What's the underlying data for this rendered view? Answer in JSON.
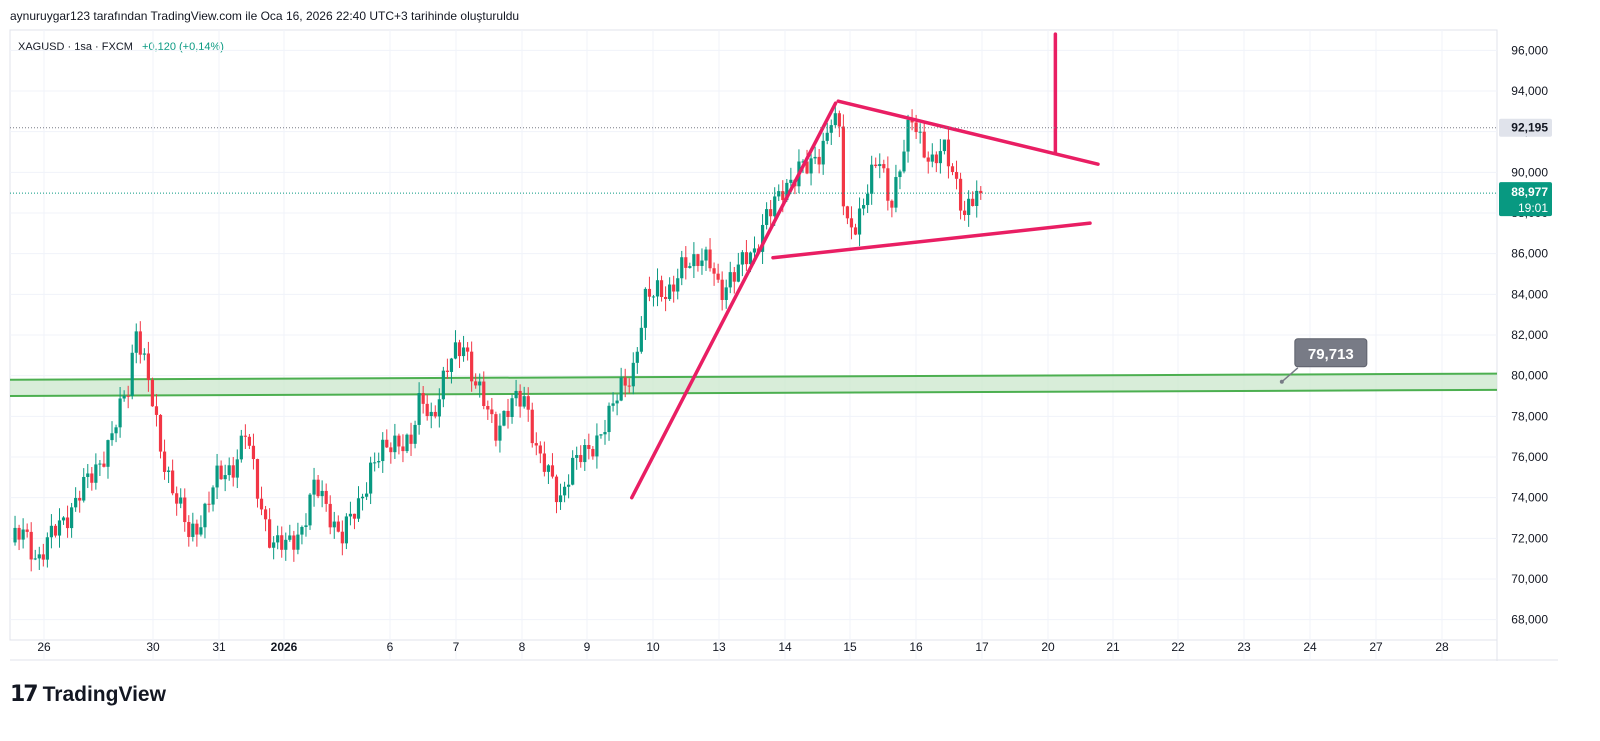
{
  "header": {
    "attribution": "aynuruygar123 tarafından TradingView.com ile Oca 16, 2026 22:40 UTC+3 tarihinde oluşturuldu"
  },
  "symbol": {
    "name": "XAGUSD",
    "interval": "1sa",
    "source": "FXCM",
    "separator": " · ",
    "change": "+0,120 (+0,14%)"
  },
  "price_scale": {
    "ticks": [
      "96,000",
      "94,000",
      "92,000",
      "90,000",
      "88,000",
      "86,000",
      "84,000",
      "82,000",
      "80,000",
      "78,000",
      "76,000",
      "74,000",
      "72,000",
      "70,000",
      "68,000"
    ],
    "marker_line": {
      "label": "92,195",
      "color": "#131722"
    },
    "last_price": {
      "label": "88,977",
      "countdown": "19:01",
      "color": "#089981"
    }
  },
  "time_axis": {
    "labels": [
      {
        "text": "26",
        "bold": false
      },
      {
        "text": "30",
        "bold": false
      },
      {
        "text": "31",
        "bold": false
      },
      {
        "text": "2026",
        "bold": true
      },
      {
        "text": "6",
        "bold": false
      },
      {
        "text": "7",
        "bold": false
      },
      {
        "text": "8",
        "bold": false
      },
      {
        "text": "9",
        "bold": false
      },
      {
        "text": "10",
        "bold": false
      },
      {
        "text": "13",
        "bold": false
      },
      {
        "text": "14",
        "bold": false
      },
      {
        "text": "15",
        "bold": false
      },
      {
        "text": "16",
        "bold": false
      },
      {
        "text": "17",
        "bold": false
      },
      {
        "text": "20",
        "bold": false
      },
      {
        "text": "21",
        "bold": false
      },
      {
        "text": "22",
        "bold": false
      },
      {
        "text": "23",
        "bold": false
      },
      {
        "text": "24",
        "bold": false
      },
      {
        "text": "27",
        "bold": false
      },
      {
        "text": "28",
        "bold": false
      }
    ]
  },
  "chart_data": {
    "type": "candlestick",
    "symbol": "XAGUSD",
    "ylim": [
      67000,
      97000
    ],
    "colors": {
      "up": "#089981",
      "down": "#f23645",
      "trendline": "#e91e63",
      "zone": "#4caf50",
      "zone_fill": "#c8e6c9"
    },
    "wave": [
      {
        "x": 0,
        "v": 71.8
      },
      {
        "x": 0.5,
        "v": 72.2
      },
      {
        "x": 1,
        "v": 71.0
      },
      {
        "x": 2,
        "v": 73.0
      },
      {
        "x": 3,
        "v": 75.0
      },
      {
        "x": 3.8,
        "v": 77.0
      },
      {
        "x": 4.4,
        "v": 79.5
      },
      {
        "x": 4.7,
        "v": 82.5
      },
      {
        "x": 5.1,
        "v": 80.0
      },
      {
        "x": 5.6,
        "v": 76.5
      },
      {
        "x": 6.2,
        "v": 74.0
      },
      {
        "x": 6.7,
        "v": 72.0
      },
      {
        "x": 7.2,
        "v": 73.2
      },
      {
        "x": 7.7,
        "v": 74.8
      },
      {
        "x": 8.3,
        "v": 75.5
      },
      {
        "x": 8.8,
        "v": 77.2
      },
      {
        "x": 9.3,
        "v": 74.0
      },
      {
        "x": 9.8,
        "v": 71.8
      },
      {
        "x": 10.3,
        "v": 71.5
      },
      {
        "x": 10.9,
        "v": 72.5
      },
      {
        "x": 11.4,
        "v": 74.5
      },
      {
        "x": 11.9,
        "v": 73.5
      },
      {
        "x": 12.4,
        "v": 72.0
      },
      {
        "x": 13,
        "v": 73.5
      },
      {
        "x": 13.5,
        "v": 75.5
      },
      {
        "x": 14,
        "v": 76.2
      },
      {
        "x": 14.5,
        "v": 77.0
      },
      {
        "x": 15,
        "v": 76.5
      },
      {
        "x": 15.4,
        "v": 79.0
      },
      {
        "x": 15.8,
        "v": 78.0
      },
      {
        "x": 16.2,
        "v": 79.5
      },
      {
        "x": 16.6,
        "v": 81.0
      },
      {
        "x": 17.0,
        "v": 81.8
      },
      {
        "x": 17.4,
        "v": 79.5
      },
      {
        "x": 17.8,
        "v": 78.5
      },
      {
        "x": 18.2,
        "v": 77.5
      },
      {
        "x": 18.8,
        "v": 78.5
      },
      {
        "x": 19.3,
        "v": 79.0
      },
      {
        "x": 19.8,
        "v": 76.0
      },
      {
        "x": 20.2,
        "v": 75.0
      },
      {
        "x": 20.6,
        "v": 74.0
      },
      {
        "x": 21.0,
        "v": 75.5
      },
      {
        "x": 21.5,
        "v": 76.0
      },
      {
        "x": 22,
        "v": 77.0
      },
      {
        "x": 22.5,
        "v": 78.0
      },
      {
        "x": 22.9,
        "v": 79.5
      },
      {
        "x": 23.4,
        "v": 80.5
      },
      {
        "x": 23.8,
        "v": 83.5
      },
      {
        "x": 24.3,
        "v": 84.5
      },
      {
        "x": 24.8,
        "v": 84.0
      },
      {
        "x": 25.3,
        "v": 85.5
      },
      {
        "x": 25.8,
        "v": 86.0
      },
      {
        "x": 26.2,
        "v": 85.5
      },
      {
        "x": 26.6,
        "v": 84.0
      },
      {
        "x": 27.0,
        "v": 85.0
      },
      {
        "x": 27.5,
        "v": 85.5
      },
      {
        "x": 27.9,
        "v": 86.0
      },
      {
        "x": 28.3,
        "v": 88.0
      },
      {
        "x": 28.8,
        "v": 88.5
      },
      {
        "x": 29.2,
        "v": 89.5
      },
      {
        "x": 29.6,
        "v": 90.5
      },
      {
        "x": 30.0,
        "v": 90.0
      },
      {
        "x": 30.4,
        "v": 91.0
      },
      {
        "x": 30.8,
        "v": 93.0
      },
      {
        "x": 31.1,
        "v": 92.0
      },
      {
        "x": 31.3,
        "v": 87.0
      },
      {
        "x": 31.7,
        "v": 87.5
      },
      {
        "x": 32.2,
        "v": 89.5
      },
      {
        "x": 32.6,
        "v": 90.5
      },
      {
        "x": 33.0,
        "v": 88.5
      },
      {
        "x": 33.4,
        "v": 90.5
      },
      {
        "x": 33.8,
        "v": 92.5
      },
      {
        "x": 34.2,
        "v": 91.5
      },
      {
        "x": 34.6,
        "v": 90.5
      },
      {
        "x": 35.0,
        "v": 91.0
      },
      {
        "x": 35.4,
        "v": 90.0
      },
      {
        "x": 35.8,
        "v": 88.0
      },
      {
        "x": 36.1,
        "v": 88.5
      },
      {
        "x": 36.4,
        "v": 88.98
      }
    ],
    "trendlines": [
      {
        "p1": {
          "x": 23.3,
          "v": 74.0
        },
        "p2": {
          "x": 30.95,
          "v": 93.4
        }
      },
      {
        "p1": {
          "x": 31.05,
          "v": 93.5
        },
        "p2": {
          "x": 40.8,
          "v": 90.4
        }
      },
      {
        "p1": {
          "x": 28.6,
          "v": 85.8
        },
        "p2": {
          "x": 40.5,
          "v": 87.5
        }
      },
      {
        "p1": {
          "x": 39.2,
          "v": 91.0
        },
        "p2": {
          "x": 39.2,
          "v": 96.8
        }
      }
    ],
    "support_zone": {
      "x_start": 0,
      "x_end": 48,
      "top_start": 79.8,
      "top_end": 80.1,
      "bottom_start": 79.0,
      "bottom_end": 79.3
    },
    "zone_marker": {
      "x": 47.7,
      "v": 79.7,
      "label": "79,713"
    },
    "last_close": 88.977,
    "marker_price": 92.195
  },
  "branding": {
    "logo": "TradingView"
  }
}
